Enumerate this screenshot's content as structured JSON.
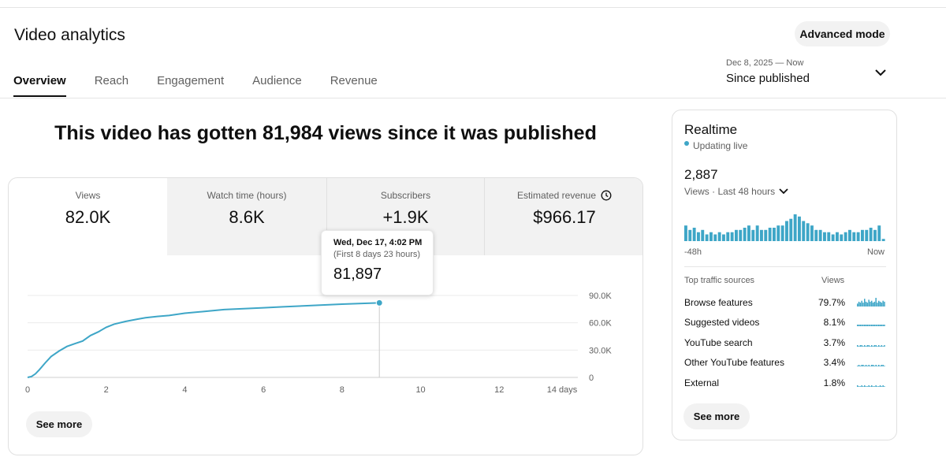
{
  "header": {
    "title": "Video analytics",
    "advanced_mode": "Advanced mode"
  },
  "tabs": [
    {
      "label": "Overview",
      "active": true
    },
    {
      "label": "Reach",
      "active": false
    },
    {
      "label": "Engagement",
      "active": false
    },
    {
      "label": "Audience",
      "active": false
    },
    {
      "label": "Revenue",
      "active": false
    }
  ],
  "date_picker": {
    "range": "Dec 8, 2025 — Now",
    "label": "Since published",
    "icon": "chevron-down-icon"
  },
  "headline": "This video has gotten 81,984 views since it was published",
  "metrics": [
    {
      "label": "Views",
      "value": "82.0K",
      "selected": true
    },
    {
      "label": "Watch time (hours)",
      "value": "8.6K",
      "selected": false
    },
    {
      "label": "Subscribers",
      "value": "+1.9K",
      "selected": false
    },
    {
      "label": "Estimated revenue",
      "value": "$966.17",
      "selected": false,
      "icon": "info-icon"
    }
  ],
  "tooltip": {
    "date": "Wed, Dec 17, 4:02 PM",
    "sub": "(First 8 days 23 hours)",
    "value": "81,897"
  },
  "colors": {
    "accent": "#3ea6c7",
    "tab_inactive_bg": "#f2f2f2"
  },
  "chart_data": {
    "type": "line",
    "x_tick_labels": [
      "0",
      "2",
      "4",
      "6",
      "8",
      "10",
      "12",
      "14 days"
    ],
    "y_tick_labels": [
      "0",
      "30.0K",
      "60.0K",
      "90.0K"
    ],
    "xlim": [
      0,
      14
    ],
    "ylim": [
      0,
      90000
    ],
    "grid": true,
    "series": [
      {
        "x": [
          0,
          0.1,
          0.2,
          0.3,
          0.45,
          0.6,
          0.8,
          1.0,
          1.2,
          1.4,
          1.6,
          1.8,
          2.0,
          2.2,
          2.5,
          2.8,
          3.0,
          3.3,
          3.6,
          4.0,
          4.5,
          5.0,
          5.5,
          6.0,
          6.5,
          7.0,
          7.5,
          8.0,
          8.5,
          8.95
        ],
        "y": [
          0,
          1000,
          4000,
          8500,
          16000,
          23000,
          29000,
          34000,
          37000,
          40000,
          46000,
          50000,
          55000,
          58500,
          61500,
          64000,
          65500,
          67000,
          68000,
          70500,
          72500,
          74500,
          75500,
          76500,
          77500,
          78500,
          79500,
          80500,
          81300,
          81897
        ]
      }
    ],
    "highlight": {
      "x": 8.95,
      "y": 81897
    }
  },
  "see_more_main": "See more",
  "realtime": {
    "title": "Realtime",
    "status": "Updating live",
    "count": "2,887",
    "period": "Views · Last 48 hours",
    "axis_left": "-48h",
    "axis_right": "Now",
    "bars": [
      7,
      5,
      6,
      4,
      5,
      3,
      4,
      3,
      4,
      3,
      4,
      4,
      5,
      5,
      6,
      7,
      5,
      7,
      5,
      5,
      6,
      6,
      7,
      7,
      9,
      10,
      12,
      11,
      9,
      8,
      7,
      5,
      5,
      4,
      4,
      3,
      4,
      3,
      4,
      5,
      4,
      4,
      5,
      5,
      6,
      5,
      7,
      1
    ],
    "sources_header": "Top traffic sources",
    "views_header": "Views",
    "sources": [
      {
        "name": "Browse features",
        "pct": "79.7%",
        "spark": [
          3,
          5,
          4,
          6,
          4,
          8,
          5,
          4,
          7,
          5,
          6,
          4,
          5,
          9,
          4,
          6,
          5,
          4,
          6,
          5
        ]
      },
      {
        "name": "Suggested videos",
        "pct": "8.1%",
        "spark": [
          1,
          1,
          1,
          1,
          1,
          1,
          1,
          1,
          1,
          1,
          1,
          1,
          1,
          1,
          1,
          1,
          1,
          1,
          1,
          1
        ]
      },
      {
        "name": "YouTube search",
        "pct": "3.7%",
        "spark": [
          1,
          0,
          1,
          1,
          0,
          1,
          0,
          1,
          1,
          0,
          1,
          0,
          1,
          1,
          0,
          1,
          0,
          1,
          0,
          1
        ]
      },
      {
        "name": "Other YouTube features",
        "pct": "3.4%",
        "spark": [
          0,
          1,
          0,
          1,
          1,
          0,
          1,
          0,
          1,
          0,
          1,
          1,
          0,
          1,
          0,
          1,
          0,
          1,
          1,
          0
        ]
      },
      {
        "name": "External",
        "pct": "1.8%",
        "spark": [
          1,
          0,
          0,
          1,
          0,
          1,
          0,
          0,
          1,
          0,
          1,
          0,
          0,
          1,
          0,
          0,
          1,
          0,
          1,
          0
        ]
      }
    ],
    "see_more": "See more"
  }
}
